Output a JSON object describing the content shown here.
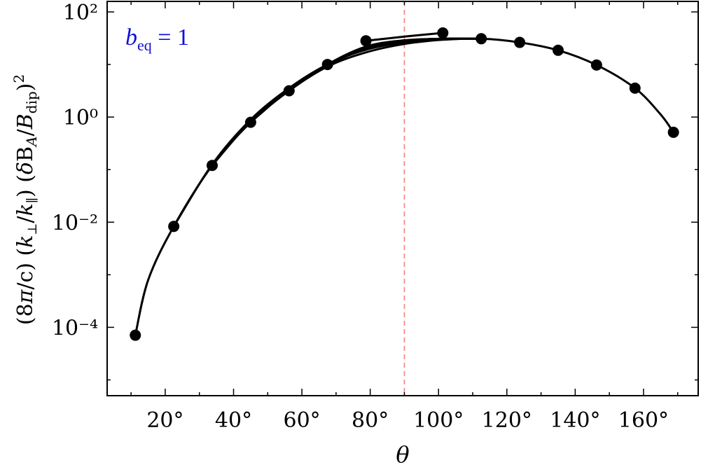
{
  "chart_data": {
    "type": "line",
    "xlabel": "θ",
    "ylabel": "(8π/c) (k⊥/k∥) (δB_A/B_dip)²",
    "x_ticks": [
      20,
      40,
      60,
      80,
      100,
      120,
      140,
      160
    ],
    "x_tick_labels": [
      "20°",
      "40°",
      "60°",
      "80°",
      "100°",
      "120°",
      "140°",
      "160°"
    ],
    "xlim": [
      3,
      176
    ],
    "y_scale": "log",
    "ylim_exponent": [
      -5.3,
      2.2
    ],
    "y_ticks_exponent": [
      -4,
      -2,
      0,
      2
    ],
    "y_tick_labels": [
      "10⁻⁴",
      "10⁻²",
      "10⁰",
      "10²"
    ],
    "grid": false,
    "reference_line": {
      "x": 90,
      "style": "dashed",
      "color": "#f08080"
    },
    "annotation": {
      "text": "b_eq = 1",
      "color": "#1010d8"
    },
    "markers_x": [
      11.25,
      22.5,
      33.75,
      45,
      56.25,
      67.5,
      78.75,
      101.25,
      112.5,
      123.75,
      135,
      146.25,
      157.5,
      168.75
    ],
    "markers_y_exp": [
      -4.15,
      -2.08,
      -0.92,
      -0.1,
      0.5,
      1.0,
      1.45,
      1.6,
      1.49,
      1.42,
      1.27,
      0.99,
      0.55,
      -0.29
    ],
    "series": [
      {
        "x": [
          11.25,
          15,
          22.5,
          33.75,
          45,
          56.25,
          67.5,
          78.75,
          90,
          101.25,
          112.5,
          123.75,
          135,
          146.25,
          157.5,
          165,
          168.75
        ],
        "y_exp": [
          -4.15,
          -3.1,
          -2.08,
          -0.92,
          -0.1,
          0.5,
          0.96,
          1.23,
          1.39,
          1.47,
          1.49,
          1.42,
          1.27,
          0.99,
          0.55,
          0.05,
          -0.29
        ]
      },
      {
        "x": [
          22.5,
          33.75,
          45,
          56.25,
          67.5,
          78.75,
          90,
          101.25,
          112.5
        ],
        "y_exp": [
          -2.08,
          -0.9,
          -0.05,
          0.55,
          1.0,
          1.28,
          1.42,
          1.48,
          1.49
        ]
      },
      {
        "x": [
          33.75,
          45,
          56.25,
          67.5,
          78.75,
          90,
          101.25,
          112.5
        ],
        "y_exp": [
          -0.92,
          -0.08,
          0.53,
          0.99,
          1.3,
          1.44,
          1.49,
          1.49
        ]
      },
      {
        "x": [
          45,
          56.25,
          67.5,
          78.75,
          90,
          101.25,
          112.5
        ],
        "y_exp": [
          -0.1,
          0.52,
          1.0,
          1.32,
          1.45,
          1.49,
          1.49
        ]
      },
      {
        "x": [
          56.25,
          67.5,
          78.75,
          90,
          101.25,
          112.5
        ],
        "y_exp": [
          0.5,
          1.0,
          1.34,
          1.46,
          1.49,
          1.49
        ]
      },
      {
        "x": [
          67.5,
          78.75,
          90,
          101.25,
          112.5
        ],
        "y_exp": [
          1.0,
          1.3,
          1.45,
          1.49,
          1.49
        ]
      },
      {
        "x": [
          78.75,
          90,
          101.25
        ],
        "y_exp": [
          1.45,
          1.53,
          1.6
        ]
      }
    ]
  }
}
